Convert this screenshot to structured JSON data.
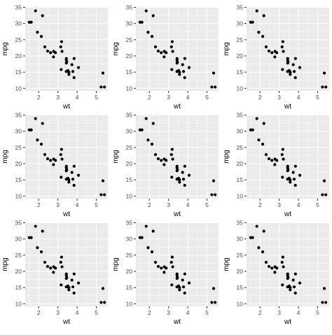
{
  "chart_data": [
    {
      "type": "scatter",
      "xlabel": "wt",
      "ylabel": "mpg",
      "xticks": [
        2,
        3,
        4,
        5
      ],
      "yticks": [
        10,
        15,
        20,
        25,
        30,
        35
      ],
      "xlim": [
        1.3,
        5.6
      ],
      "ylim": [
        9.2,
        35.1
      ],
      "grid": true,
      "background_color": "#EBEBEB",
      "point_color": "#000000",
      "x": [
        2.62,
        2.875,
        2.32,
        3.215,
        3.44,
        3.46,
        3.57,
        3.19,
        3.15,
        3.44,
        3.44,
        4.07,
        3.73,
        3.78,
        5.25,
        5.424,
        5.345,
        2.2,
        1.615,
        1.835,
        2.465,
        3.52,
        3.435,
        3.84,
        3.845,
        1.935,
        2.14,
        1.513,
        3.17,
        2.77,
        3.57,
        2.78
      ],
      "y": [
        21,
        21,
        22.8,
        21.4,
        18.7,
        18.1,
        14.3,
        24.4,
        22.8,
        19.2,
        17.8,
        16.4,
        17.3,
        15.2,
        10.4,
        10.4,
        14.7,
        32.4,
        30.4,
        33.9,
        21.5,
        15.5,
        15.2,
        13.3,
        19.2,
        27.3,
        26,
        30.4,
        15.8,
        19.7,
        15,
        21.4
      ]
    }
  ],
  "layout": {
    "rows": 3,
    "cols": 3
  }
}
